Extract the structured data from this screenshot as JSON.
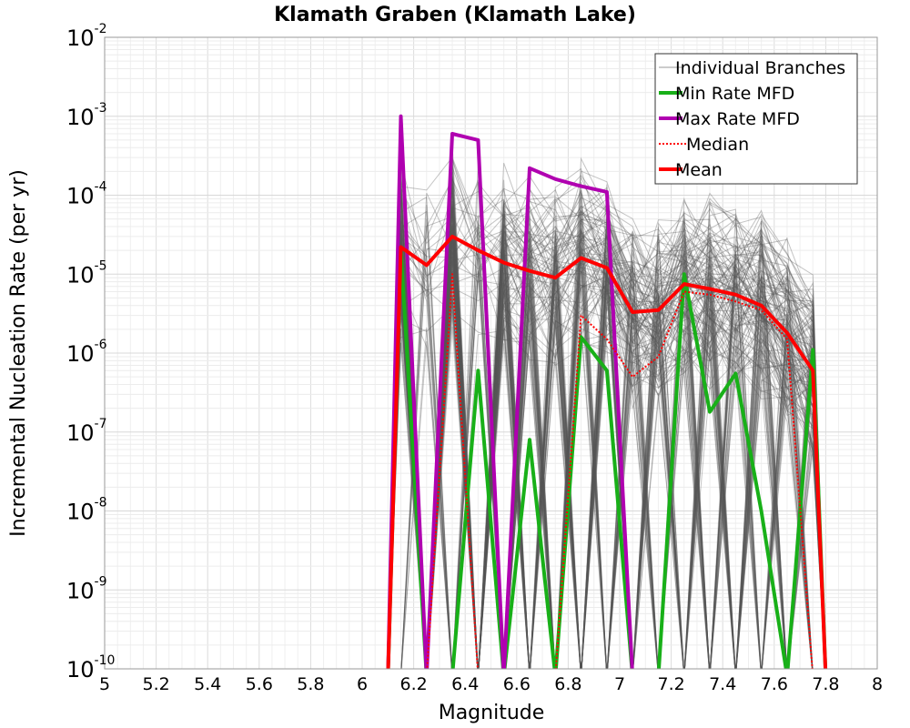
{
  "chart_data": {
    "type": "line",
    "title": "Klamath Graben (Klamath Lake)",
    "xlabel": "Magnitude",
    "ylabel": "Incremental Nucleation Rate (per yr)",
    "xlim": [
      5,
      8
    ],
    "ylim": [
      1e-10,
      0.01
    ],
    "yscale": "log",
    "grid": true,
    "legend_position": "top-right",
    "x_ticks": [
      "5",
      "5.2",
      "5.4",
      "5.6",
      "5.8",
      "6",
      "6.2",
      "6.4",
      "6.6",
      "6.8",
      "7",
      "7.2",
      "7.4",
      "7.6",
      "7.8",
      "8"
    ],
    "y_ticks": [
      {
        "base": "10",
        "exp": "-10"
      },
      {
        "base": "10",
        "exp": "-9"
      },
      {
        "base": "10",
        "exp": "-8"
      },
      {
        "base": "10",
        "exp": "-7"
      },
      {
        "base": "10",
        "exp": "-6"
      },
      {
        "base": "10",
        "exp": "-5"
      },
      {
        "base": "10",
        "exp": "-4"
      },
      {
        "base": "10",
        "exp": "-3"
      },
      {
        "base": "10",
        "exp": "-2"
      }
    ],
    "x": [
      6.15,
      6.25,
      6.35,
      6.45,
      6.55,
      6.65,
      6.75,
      6.85,
      6.95,
      7.05,
      7.15,
      7.25,
      7.35,
      7.45,
      7.55,
      7.65,
      7.75
    ],
    "series": [
      {
        "name": "Min Rate MFD",
        "color": "#18b018",
        "style": "solid",
        "values": [
          2e-05,
          0,
          0,
          6e-07,
          0,
          8e-08,
          0,
          1.6e-06,
          6e-07,
          0,
          0,
          1e-05,
          1.8e-07,
          5.5e-07,
          1e-08,
          0,
          1.1e-06
        ]
      },
      {
        "name": "Max Rate MFD",
        "color": "#b000b0",
        "style": "solid",
        "values": [
          0.001,
          0,
          0.0006,
          0.0005,
          0,
          0.00022,
          0.00016,
          0.00013,
          0.00011,
          0,
          0,
          0,
          0,
          0,
          0,
          0,
          0
        ]
      },
      {
        "name": "Median",
        "color": "#ff0000",
        "style": "dotted",
        "values": [
          0,
          0,
          1e-05,
          0,
          0,
          0,
          0,
          3e-06,
          1.5e-06,
          5e-07,
          9e-07,
          6e-06,
          5.5e-06,
          4.5e-06,
          3.5e-06,
          1.5e-06,
          0
        ]
      },
      {
        "name": "Mean",
        "color": "#ff0000",
        "style": "solid",
        "values": [
          2.2e-05,
          1.3e-05,
          3e-05,
          2e-05,
          1.4e-05,
          1.1e-05,
          9e-06,
          1.6e-05,
          1.2e-05,
          3.3e-06,
          3.5e-06,
          7.5e-06,
          6.5e-06,
          5.5e-06,
          4e-06,
          1.8e-06,
          6e-07
        ]
      }
    ],
    "individual_branches": {
      "name": "Individual Branches",
      "color": "#555555"
    },
    "legend": [
      "Individual Branches",
      "Min Rate MFD",
      "Max Rate MFD",
      "Median",
      "Mean"
    ]
  }
}
